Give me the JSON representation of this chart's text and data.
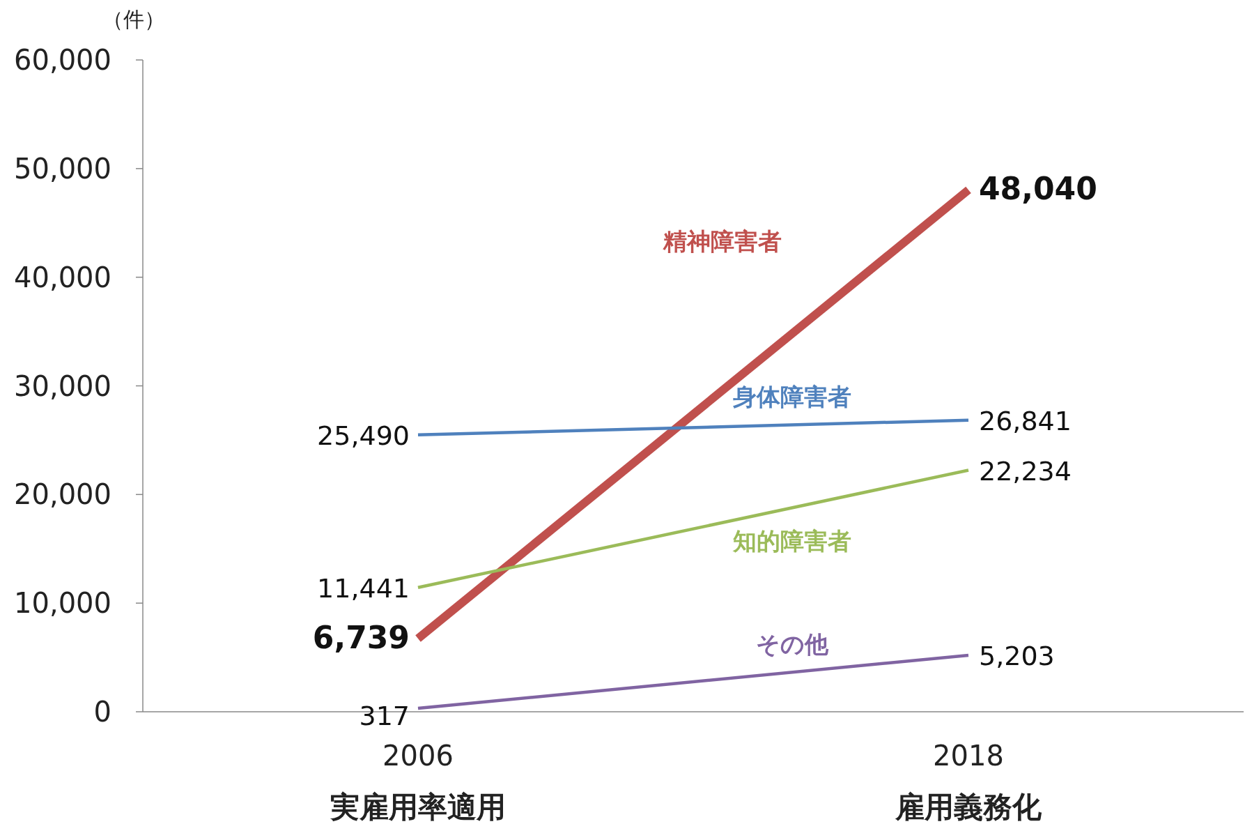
{
  "chart_data": {
    "type": "line",
    "ylabel": "（件）",
    "categories": [
      "2006",
      "2018"
    ],
    "annotations": [
      "実雇用率適用",
      "雇用義務化"
    ],
    "ylim": [
      0,
      60000
    ],
    "yticks": [
      0,
      {
        "value": 10000,
        "label": "10,000"
      },
      {
        "value": 20000,
        "label": "20,000"
      },
      {
        "value": 30000,
        "label": "30,000"
      },
      {
        "value": 40000,
        "label": "40,000"
      },
      {
        "value": 50000,
        "label": "50,000"
      },
      {
        "value": 60000,
        "label": "60,000"
      }
    ],
    "series": [
      {
        "name": "精神障害者",
        "color": "#c0504d",
        "values": [
          6739,
          48040
        ],
        "value_labels": [
          "6,739",
          "48,040"
        ]
      },
      {
        "name": "身体障害者",
        "color": "#4f81bd",
        "values": [
          25490,
          26841
        ],
        "value_labels": [
          "25,490",
          "26,841"
        ]
      },
      {
        "name": "知的障害者",
        "color": "#9bbb59",
        "values": [
          11441,
          22234
        ],
        "value_labels": [
          "11,441",
          "22,234"
        ]
      },
      {
        "name": "その他",
        "color": "#8064a2",
        "values": [
          317,
          5203
        ],
        "value_labels": [
          "317",
          "5,203"
        ]
      }
    ],
    "grid": false,
    "legend": false,
    "marker": "none",
    "line_style": "solid"
  }
}
